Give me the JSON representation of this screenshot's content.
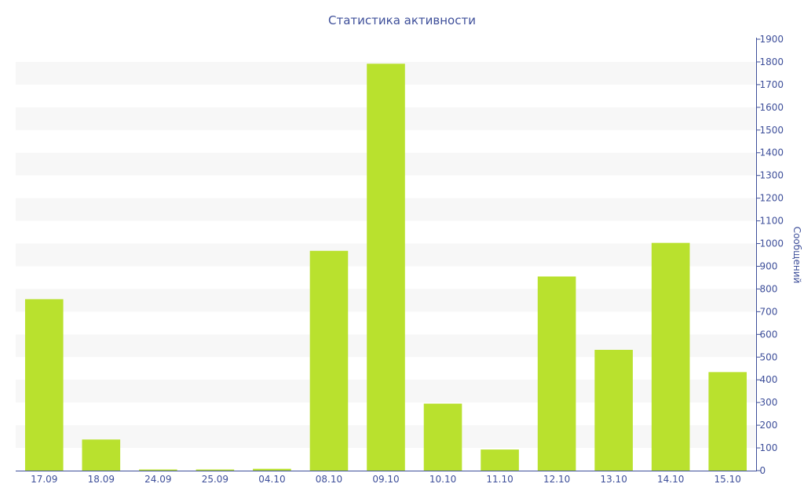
{
  "chart_data": {
    "type": "bar",
    "title": "Статистика активности",
    "xlabel": "",
    "ylabel": "Сообщений",
    "categories": [
      "17.09",
      "18.09",
      "24.09",
      "25.09",
      "04.10",
      "08.10",
      "09.10",
      "10.10",
      "11.10",
      "12.10",
      "13.10",
      "14.10",
      "15.10"
    ],
    "values": [
      755,
      137,
      5,
      5,
      8,
      968,
      1792,
      295,
      93,
      855,
      532,
      1003,
      434
    ],
    "ylim": [
      0,
      1900
    ],
    "yticks": [
      0,
      100,
      200,
      300,
      400,
      500,
      600,
      700,
      800,
      900,
      1000,
      1100,
      1200,
      1300,
      1400,
      1500,
      1600,
      1700,
      1800,
      1900
    ],
    "y_axis_position": "right",
    "grid": "alternating horizontal bands",
    "legend": "none",
    "colors": {
      "bar": "#b9e12e",
      "text": "#3e4f9a",
      "band": "#f7f7f7",
      "axis": "#3e4f9a"
    }
  }
}
